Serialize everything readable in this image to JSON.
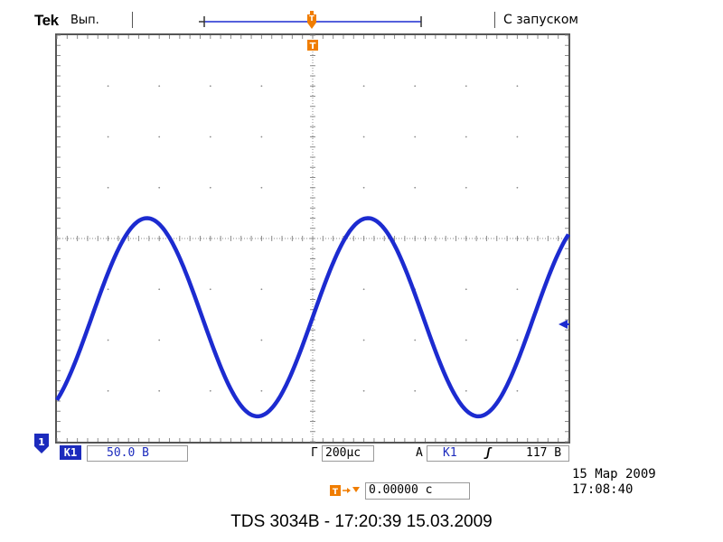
{
  "header": {
    "brand": "Tek",
    "acquisition_state": "Вып.",
    "trigger_status": "С запуском"
  },
  "markers": {
    "trigger_marker_glyph": "T",
    "channel_marker_label": "1"
  },
  "readouts": {
    "channel_badge": "K1",
    "volts_per_div": "50.0 B",
    "timebase_prefix": "Г",
    "time_per_div": "200µc",
    "trigger_mode": "A",
    "trigger_source": "K1",
    "trigger_slope": "ʃ",
    "trigger_level": "117 B",
    "trigger_position": "0.00000 c"
  },
  "timestamp": {
    "date": "15 Мар 2009",
    "time": "17:08:40"
  },
  "caption": "TDS 3034B - 17:20:39   15.03.2009",
  "colors": {
    "trace": "#1c2bd0",
    "accent": "#f07d00",
    "grid": "#8c8c8c",
    "screen_border": "#555555"
  },
  "icons": [
    "trigger-marker-icon",
    "channel-ground-marker-icon",
    "trigger-level-marker-icon",
    "trigger-position-icon"
  ]
}
